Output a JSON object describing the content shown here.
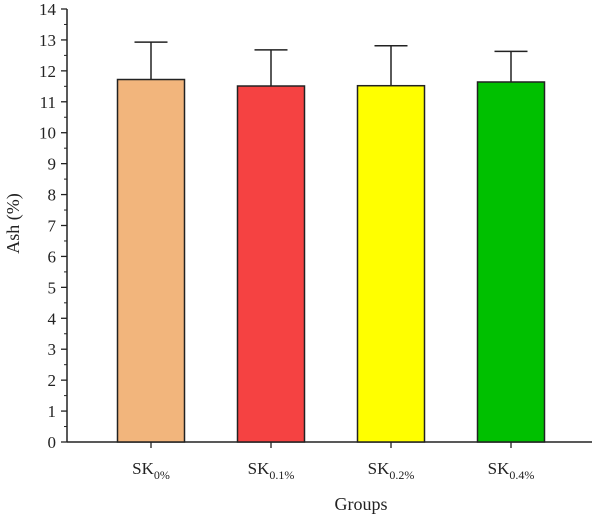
{
  "chart_data": {
    "type": "bar",
    "xlabel": "Groups",
    "ylabel": "Ash (%)",
    "ylim": [
      0,
      14
    ],
    "yticks": [
      0,
      1,
      2,
      3,
      4,
      5,
      6,
      7,
      8,
      9,
      10,
      11,
      12,
      13,
      14
    ],
    "grid": false,
    "categories": [
      {
        "base": "SK",
        "sub": "0%"
      },
      {
        "base": "SK",
        "sub": "0.1%"
      },
      {
        "base": "SK",
        "sub": "0.2%"
      },
      {
        "base": "SK",
        "sub": "0.4%"
      }
    ],
    "values": [
      11.72,
      11.51,
      11.52,
      11.64
    ],
    "errors": [
      1.21,
      1.17,
      1.29,
      0.99
    ],
    "colors": [
      "#F2B57C",
      "#F54242",
      "#FFFF00",
      "#00C000"
    ]
  }
}
